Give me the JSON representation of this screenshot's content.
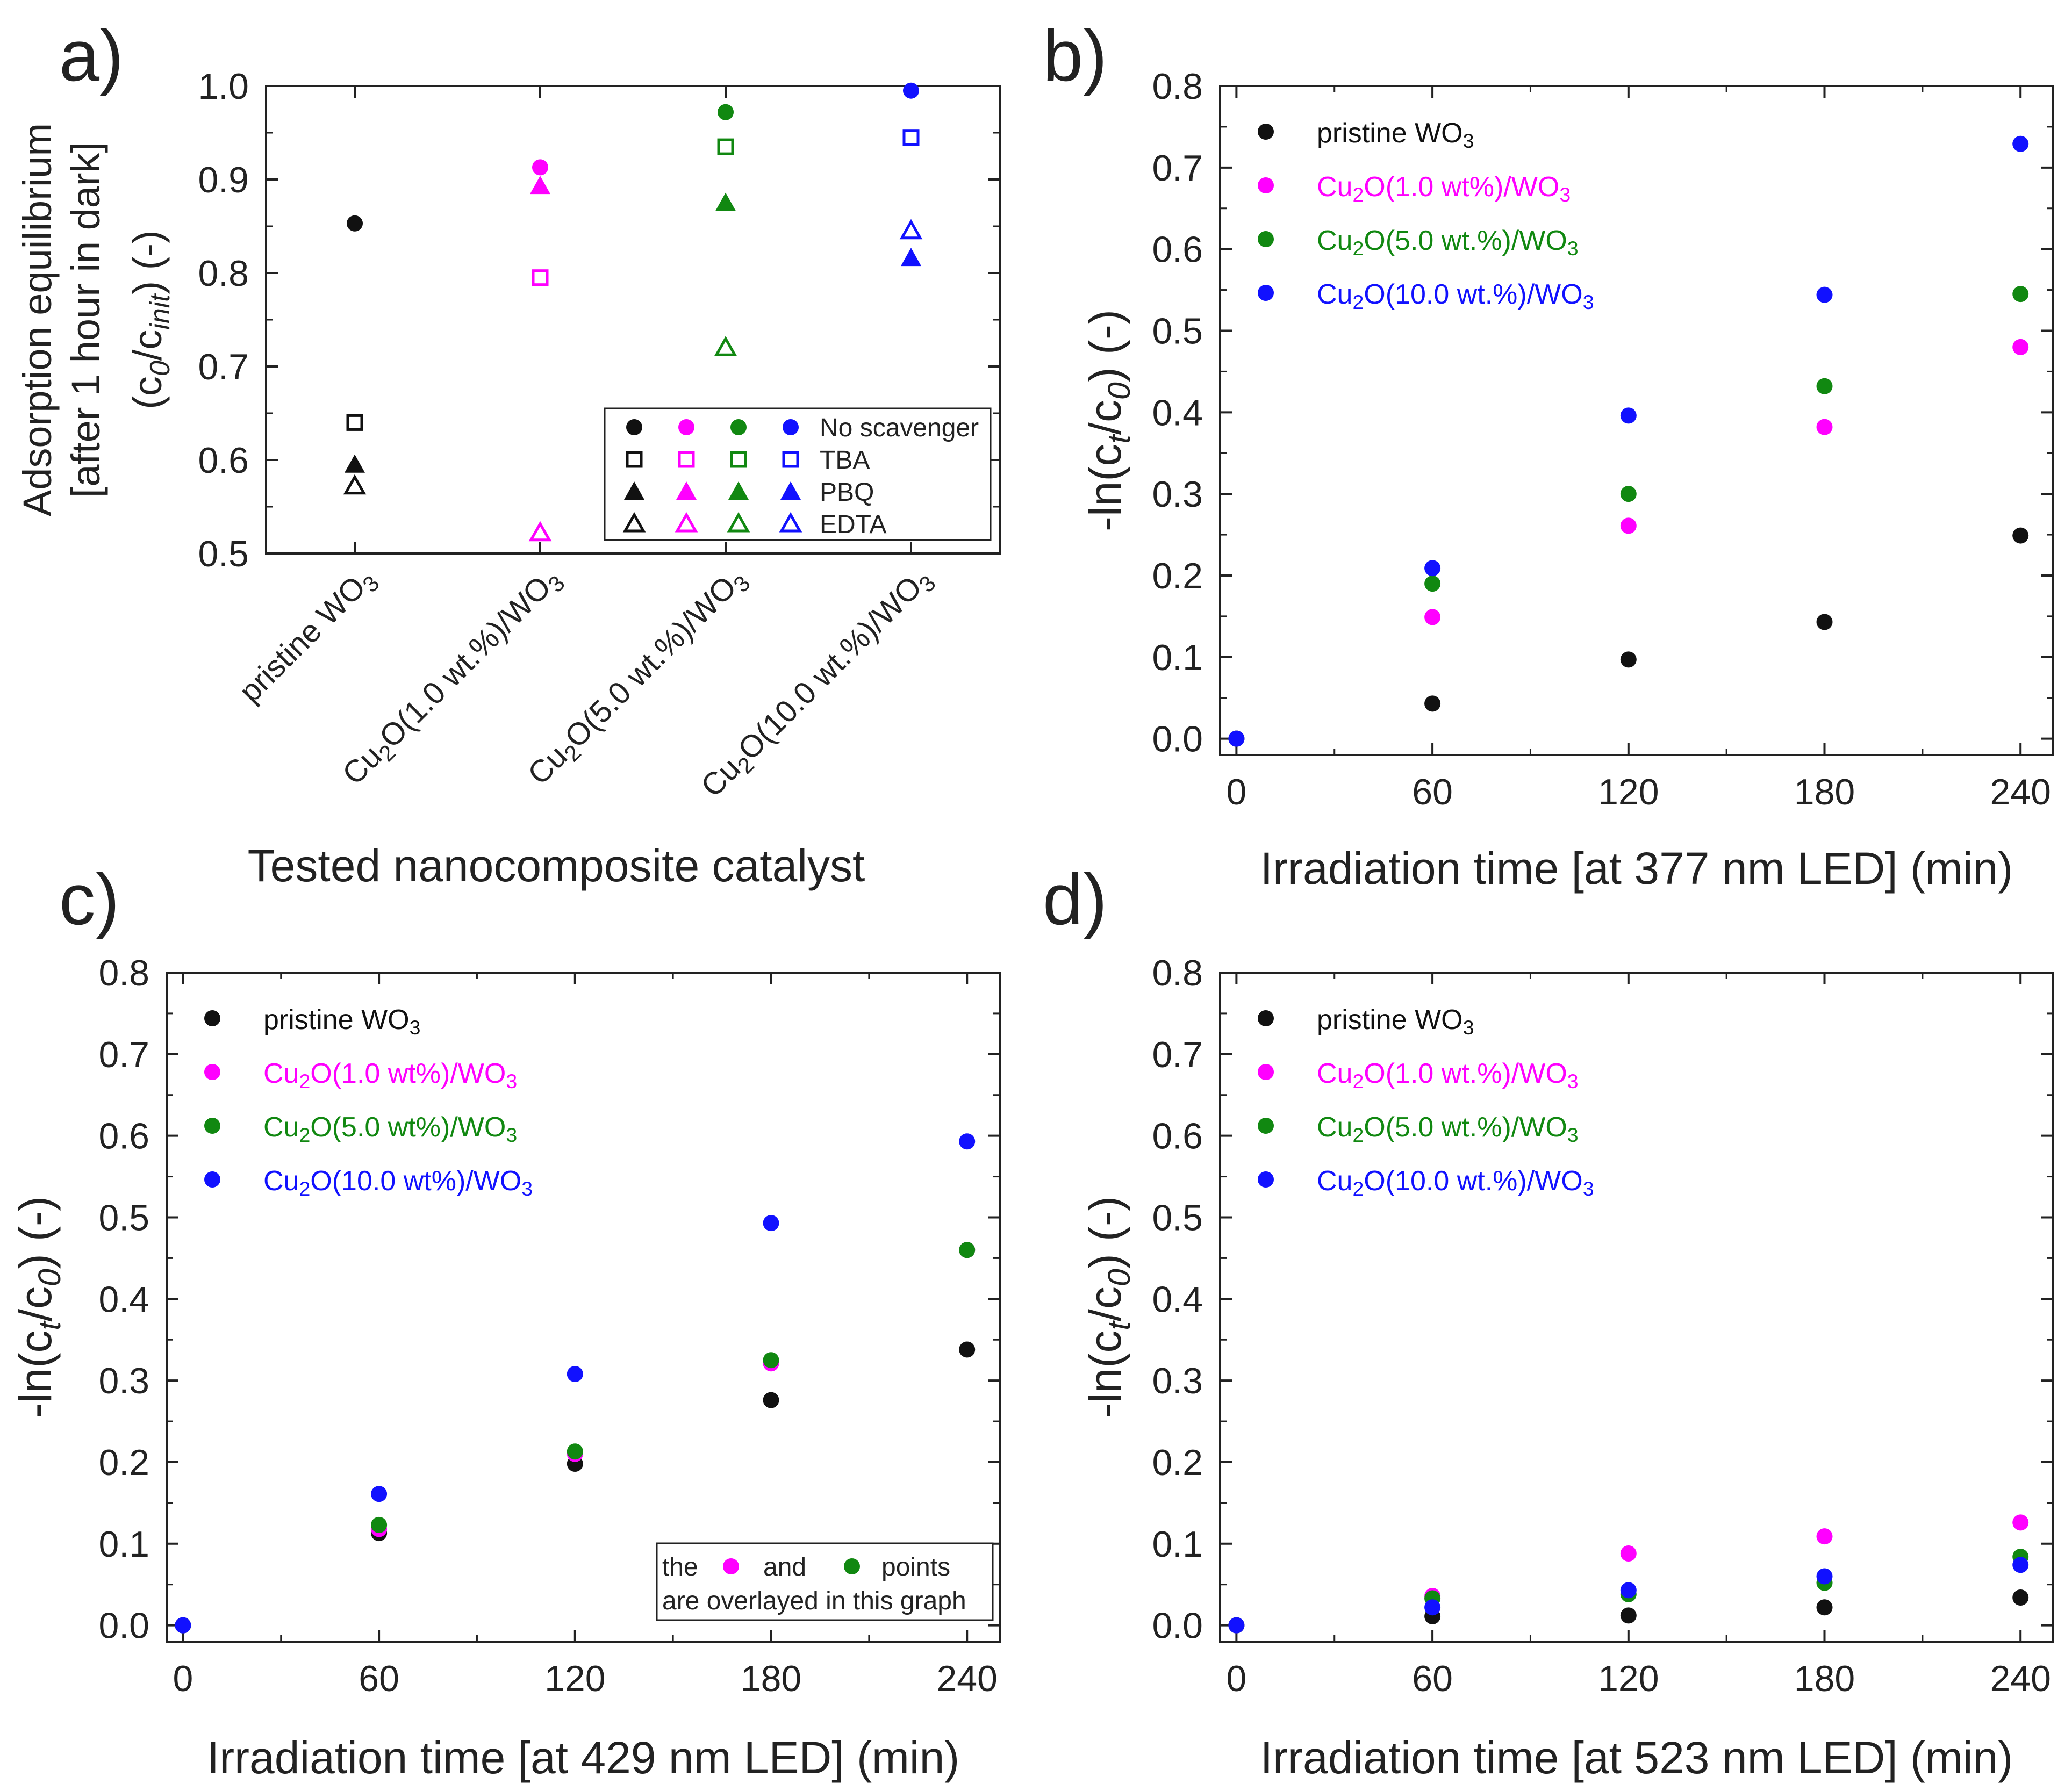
{
  "colors": {
    "black": "#111111",
    "magenta": "#ff00ff",
    "green": "#118811",
    "blue": "#1111ff"
  },
  "chart_data": [
    {
      "panel": "a)",
      "type": "scatter",
      "categories": [
        {
          "pre": "pristine WO",
          "sub": "3"
        },
        {
          "pre": "Cu",
          "sub1": "2",
          "mid": "O(1.0 wt.%)/WO",
          "sub2": "3"
        },
        {
          "pre": "Cu",
          "sub1": "2",
          "mid": "O(5.0 wt.%)/WO",
          "sub2": "3"
        },
        {
          "pre": "Cu",
          "sub1": "2",
          "mid": "O(10.0 wt.%)/WO",
          "sub2": "3"
        }
      ],
      "xlabel": "Tested nanocomposite catalyst",
      "ylabel_lines": [
        "Adsorption equilibrium",
        "[after 1 hour in dark]"
      ],
      "ylabel_formula": {
        "p1": "(c",
        "s1": "0",
        "p2": "/c",
        "s2": "init",
        "p3": ") (-)"
      },
      "ylim": [
        0.5,
        1.0
      ],
      "yticks": [
        "0.5",
        "0.6",
        "0.7",
        "0.8",
        "0.9",
        "1.0"
      ],
      "series": [
        {
          "name": "No scavenger",
          "marker": "circle",
          "values": [
            0.853,
            0.913,
            0.972,
            0.995
          ]
        },
        {
          "name": "TBA",
          "marker": "square-open",
          "values": [
            0.64,
            0.795,
            0.935,
            0.945
          ]
        },
        {
          "name": "PBQ",
          "marker": "triangle",
          "values": [
            0.595,
            0.893,
            0.875,
            0.816
          ]
        },
        {
          "name": "EDTA",
          "marker": "triangle-open",
          "values": [
            0.572,
            0.522,
            0.72,
            0.845
          ]
        }
      ],
      "legend_position": "bottom-right"
    },
    {
      "panel": "b)",
      "type": "scatter",
      "xlabel": "Irradiation time [at 377 nm LED] (min)",
      "ylabel": {
        "p1": "-ln(c",
        "s1": "t",
        "p2": "/c",
        "s2": "0",
        "p3": ") (-)"
      },
      "xlim": [
        -5,
        250
      ],
      "ylim": [
        -0.02,
        0.8
      ],
      "xticks": [
        "0",
        "60",
        "120",
        "180",
        "240"
      ],
      "yticks": [
        "0.0",
        "0.1",
        "0.2",
        "0.3",
        "0.4",
        "0.5",
        "0.6",
        "0.7",
        "0.8"
      ],
      "x": [
        0,
        60,
        120,
        180,
        240
      ],
      "series": [
        {
          "name": "pristine WO3",
          "legend": {
            "pre": "pristine WO",
            "sub": "3"
          },
          "values": [
            0.0,
            0.043,
            0.097,
            0.143,
            0.249
          ]
        },
        {
          "name": "Cu2O(1.0 wt%)/WO3",
          "legend": {
            "pre": "Cu",
            "sub1": "2",
            "mid": "O(1.0 wt%)/WO",
            "sub2": "3"
          },
          "values": [
            0.0,
            0.149,
            0.261,
            0.382,
            0.48
          ]
        },
        {
          "name": "Cu2O(5.0 wt.%)/WO3",
          "legend": {
            "pre": "Cu",
            "sub1": "2",
            "mid": "O(5.0 wt.%)/WO",
            "sub2": "3"
          },
          "values": [
            0.0,
            0.19,
            0.3,
            0.432,
            0.545
          ]
        },
        {
          "name": "Cu2O(10.0 wt.%)/WO3",
          "legend": {
            "pre": "Cu",
            "sub1": "2",
            "mid": "O(10.0 wt.%)/WO",
            "sub2": "3"
          },
          "values": [
            0.0,
            0.209,
            0.396,
            0.544,
            0.729
          ]
        }
      ],
      "legend_position": "top-left"
    },
    {
      "panel": "c)",
      "type": "scatter",
      "xlabel": "Irradiation time [at 429 nm LED] (min)",
      "ylabel": {
        "p1": "-ln(c",
        "s1": "t",
        "p2": "/c",
        "s2": "0",
        "p3": ") (-)"
      },
      "xlim": [
        -5,
        250
      ],
      "ylim": [
        -0.02,
        0.8
      ],
      "xticks": [
        "0",
        "60",
        "120",
        "180",
        "240"
      ],
      "yticks": [
        "0.0",
        "0.1",
        "0.2",
        "0.3",
        "0.4",
        "0.5",
        "0.6",
        "0.7",
        "0.8"
      ],
      "x": [
        0,
        60,
        120,
        180,
        240
      ],
      "series": [
        {
          "name": "pristine WO3",
          "legend": {
            "pre": "pristine WO",
            "sub": "3"
          },
          "values": [
            0.0,
            0.113,
            0.198,
            0.276,
            0.338
          ]
        },
        {
          "name": "Cu2O(1.0 wt%)/WO3",
          "legend": {
            "pre": "Cu",
            "sub1": "2",
            "mid": "O(1.0 wt%)/WO",
            "sub2": "3"
          },
          "values": [
            0.0,
            0.118,
            0.21,
            0.321,
            0.46
          ]
        },
        {
          "name": "Cu2O(5.0 wt%)/WO3",
          "legend": {
            "pre": "Cu",
            "sub1": "2",
            "mid": "O(5.0 wt%)/WO",
            "sub2": "3"
          },
          "values": [
            0.0,
            0.123,
            0.213,
            0.325,
            0.46
          ]
        },
        {
          "name": "Cu2O(10.0 wt%)/WO3",
          "legend": {
            "pre": "Cu",
            "sub1": "2",
            "mid": "O(10.0 wt%)/WO",
            "sub2": "3"
          },
          "values": [
            0.0,
            0.161,
            0.308,
            0.493,
            0.593
          ]
        }
      ],
      "legend_position": "top-left",
      "annotation": {
        "line1_a": "the",
        "line1_b": "and",
        "line1_c": "points",
        "line2": "are overlayed in this graph"
      }
    },
    {
      "panel": "d)",
      "type": "scatter",
      "xlabel": "Irradiation time [at 523 nm LED] (min)",
      "ylabel": {
        "p1": "-ln(c",
        "s1": "t",
        "p2": "/c",
        "s2": "0",
        "p3": ") (-)"
      },
      "xlim": [
        -5,
        250
      ],
      "ylim": [
        -0.02,
        0.8
      ],
      "xticks": [
        "0",
        "60",
        "120",
        "180",
        "240"
      ],
      "yticks": [
        "0.0",
        "0.1",
        "0.2",
        "0.3",
        "0.4",
        "0.5",
        "0.6",
        "0.7",
        "0.8"
      ],
      "x": [
        0,
        60,
        120,
        180,
        240
      ],
      "series": [
        {
          "name": "pristine WO3",
          "legend": {
            "pre": "pristine WO",
            "sub": "3"
          },
          "values": [
            0.0,
            0.011,
            0.012,
            0.022,
            0.034
          ]
        },
        {
          "name": "Cu2O(1.0 wt.%)/WO3",
          "legend": {
            "pre": "Cu",
            "sub1": "2",
            "mid": "O(1.0 wt.%)/WO",
            "sub2": "3"
          },
          "values": [
            0.0,
            0.036,
            0.088,
            0.109,
            0.126
          ]
        },
        {
          "name": "Cu2O(5.0 wt.%)/WO3",
          "legend": {
            "pre": "Cu",
            "sub1": "2",
            "mid": "O(5.0 wt.%)/WO",
            "sub2": "3"
          },
          "values": [
            0.0,
            0.033,
            0.038,
            0.052,
            0.084
          ]
        },
        {
          "name": "Cu2O(10.0 wt.%)/WO3",
          "legend": {
            "pre": "Cu",
            "sub1": "2",
            "mid": "O(10.0 wt.%)/WO",
            "sub2": "3"
          },
          "values": [
            0.0,
            0.022,
            0.043,
            0.06,
            0.074
          ]
        }
      ],
      "legend_position": "top-left"
    }
  ]
}
